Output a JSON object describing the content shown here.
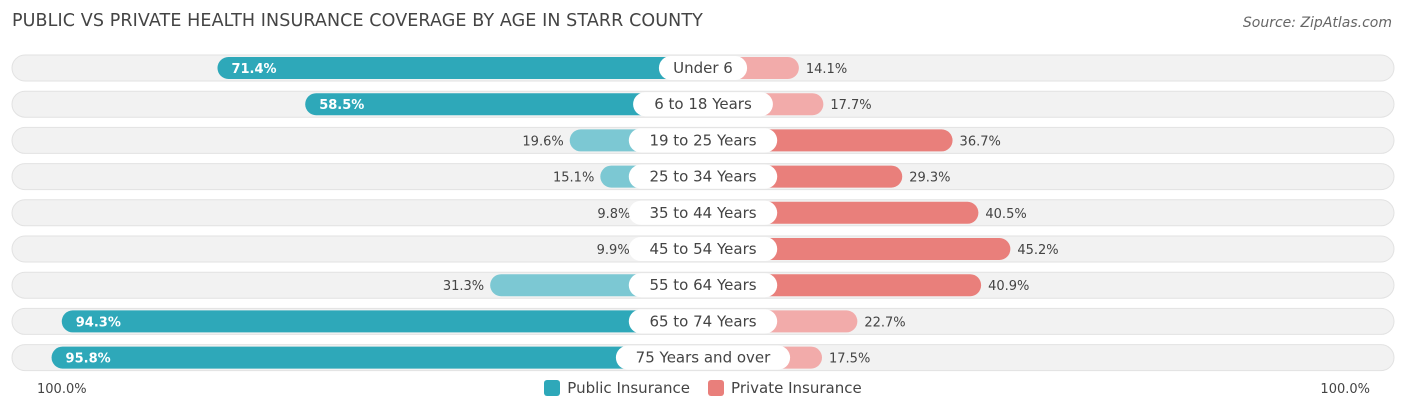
{
  "title": "PUBLIC VS PRIVATE HEALTH INSURANCE COVERAGE BY AGE IN STARR COUNTY",
  "source": "Source: ZipAtlas.com",
  "colors": {
    "public_strong": "#2ea8b9",
    "public_light": "#7cc8d3",
    "private_strong": "#e97f7b",
    "private_light": "#f2abaa",
    "row_bg": "#f2f2f2",
    "row_border": "#e2e2e2"
  },
  "axis": {
    "left_label": "100.0%",
    "right_label": "100.0%"
  },
  "legend": [
    {
      "label": "Public Insurance",
      "color": "#2ea8b9"
    },
    {
      "label": "Private Insurance",
      "color": "#e97f7b"
    }
  ],
  "chart_data": {
    "type": "bar",
    "orientation": "horizontal-diverging",
    "categories": [
      "Under 6",
      "6 to 18 Years",
      "19 to 25 Years",
      "25 to 34 Years",
      "35 to 44 Years",
      "45 to 54 Years",
      "55 to 64 Years",
      "65 to 74 Years",
      "75 Years and over"
    ],
    "series": [
      {
        "name": "Public Insurance",
        "values": [
          71.4,
          58.5,
          19.6,
          15.1,
          9.8,
          9.9,
          31.3,
          94.3,
          95.8
        ],
        "labels": [
          "71.4%",
          "58.5%",
          "19.6%",
          "15.1%",
          "9.8%",
          "9.9%",
          "31.3%",
          "94.3%",
          "95.8%"
        ]
      },
      {
        "name": "Private Insurance",
        "values": [
          14.1,
          17.7,
          36.7,
          29.3,
          40.5,
          45.2,
          40.9,
          22.7,
          17.5
        ],
        "labels": [
          "14.1%",
          "17.7%",
          "36.7%",
          "29.3%",
          "40.5%",
          "45.2%",
          "40.9%",
          "22.7%",
          "17.5%"
        ]
      }
    ],
    "xlim": [
      0,
      100
    ],
    "legend_position": "bottom-center"
  }
}
